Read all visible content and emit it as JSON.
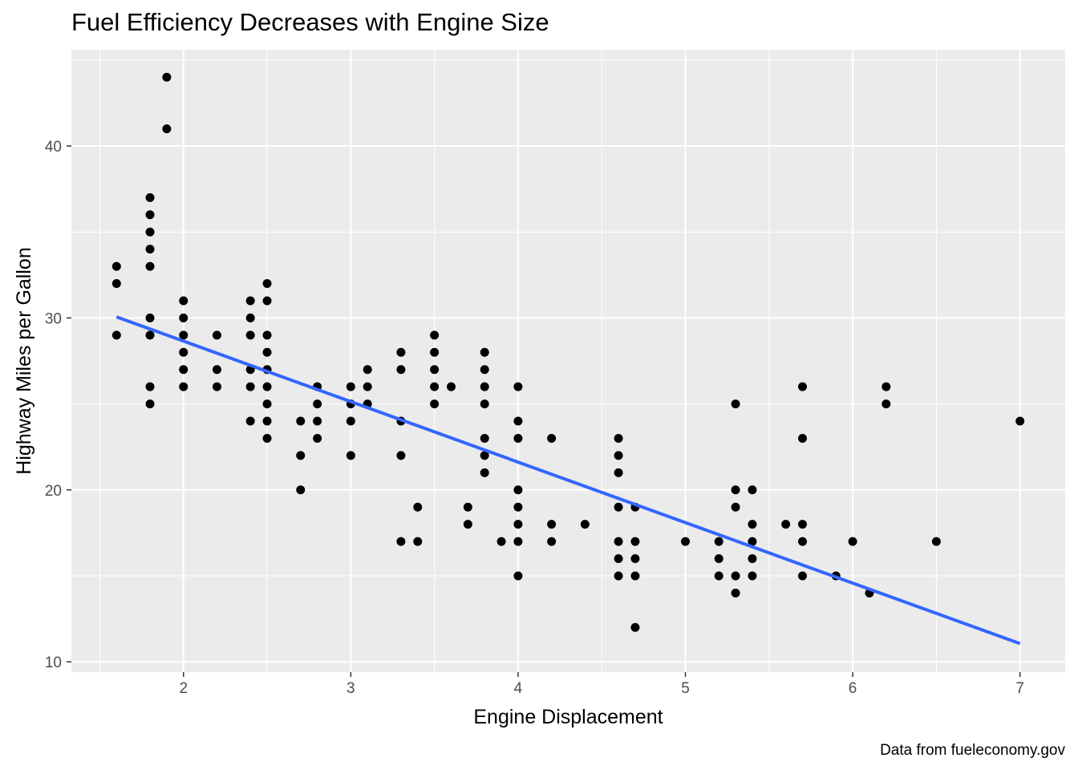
{
  "chart_data": {
    "type": "scatter",
    "title": "Fuel Efficiency Decreases with Engine Size",
    "xlabel": "Engine Displacement",
    "ylabel": "Highway Miles per Gallon",
    "caption": "Data from fueleconomy.gov",
    "xlim": [
      1.33,
      7.27
    ],
    "ylim": [
      9.4,
      45.6
    ],
    "xticks": [
      2,
      3,
      4,
      5,
      6,
      7
    ],
    "yticks": [
      10,
      20,
      30,
      40
    ],
    "grid": true,
    "point_color": "#000000",
    "points": [
      [
        1.6,
        33
      ],
      [
        1.6,
        32
      ],
      [
        1.6,
        29
      ],
      [
        1.8,
        37
      ],
      [
        1.8,
        36
      ],
      [
        1.8,
        35
      ],
      [
        1.8,
        34
      ],
      [
        1.8,
        33
      ],
      [
        1.8,
        30
      ],
      [
        1.8,
        29
      ],
      [
        1.8,
        26
      ],
      [
        1.8,
        25
      ],
      [
        1.9,
        44
      ],
      [
        1.9,
        41
      ],
      [
        2.0,
        31
      ],
      [
        2.0,
        30
      ],
      [
        2.0,
        29
      ],
      [
        2.0,
        28
      ],
      [
        2.0,
        27
      ],
      [
        2.0,
        26
      ],
      [
        2.2,
        29
      ],
      [
        2.2,
        27
      ],
      [
        2.2,
        26
      ],
      [
        2.4,
        31
      ],
      [
        2.4,
        30
      ],
      [
        2.4,
        29
      ],
      [
        2.4,
        27
      ],
      [
        2.4,
        26
      ],
      [
        2.4,
        24
      ],
      [
        2.5,
        32
      ],
      [
        2.5,
        31
      ],
      [
        2.5,
        29
      ],
      [
        2.5,
        28
      ],
      [
        2.5,
        27
      ],
      [
        2.5,
        26
      ],
      [
        2.5,
        25
      ],
      [
        2.5,
        24
      ],
      [
        2.5,
        23
      ],
      [
        2.7,
        24
      ],
      [
        2.7,
        22
      ],
      [
        2.7,
        20
      ],
      [
        2.8,
        26
      ],
      [
        2.8,
        25
      ],
      [
        2.8,
        24
      ],
      [
        2.8,
        23
      ],
      [
        3.0,
        26
      ],
      [
        3.0,
        25
      ],
      [
        3.0,
        24
      ],
      [
        3.0,
        22
      ],
      [
        3.1,
        27
      ],
      [
        3.1,
        26
      ],
      [
        3.1,
        25
      ],
      [
        3.3,
        28
      ],
      [
        3.3,
        27
      ],
      [
        3.3,
        24
      ],
      [
        3.3,
        22
      ],
      [
        3.3,
        17
      ],
      [
        3.4,
        19
      ],
      [
        3.4,
        17
      ],
      [
        3.5,
        29
      ],
      [
        3.5,
        28
      ],
      [
        3.5,
        27
      ],
      [
        3.5,
        26
      ],
      [
        3.5,
        25
      ],
      [
        3.6,
        26
      ],
      [
        3.7,
        19
      ],
      [
        3.7,
        18
      ],
      [
        3.8,
        28
      ],
      [
        3.8,
        27
      ],
      [
        3.8,
        26
      ],
      [
        3.8,
        25
      ],
      [
        3.8,
        23
      ],
      [
        3.8,
        22
      ],
      [
        3.8,
        21
      ],
      [
        3.9,
        17
      ],
      [
        4.0,
        26
      ],
      [
        4.0,
        24
      ],
      [
        4.0,
        23
      ],
      [
        4.0,
        20
      ],
      [
        4.0,
        19
      ],
      [
        4.0,
        18
      ],
      [
        4.0,
        17
      ],
      [
        4.0,
        15
      ],
      [
        4.2,
        23
      ],
      [
        4.2,
        18
      ],
      [
        4.2,
        17
      ],
      [
        4.4,
        18
      ],
      [
        4.6,
        23
      ],
      [
        4.6,
        22
      ],
      [
        4.6,
        21
      ],
      [
        4.6,
        19
      ],
      [
        4.6,
        17
      ],
      [
        4.6,
        16
      ],
      [
        4.6,
        15
      ],
      [
        4.7,
        19
      ],
      [
        4.7,
        17
      ],
      [
        4.7,
        16
      ],
      [
        4.7,
        15
      ],
      [
        4.7,
        12
      ],
      [
        5.0,
        17
      ],
      [
        5.2,
        17
      ],
      [
        5.2,
        16
      ],
      [
        5.2,
        15
      ],
      [
        5.3,
        25
      ],
      [
        5.3,
        20
      ],
      [
        5.3,
        19
      ],
      [
        5.3,
        15
      ],
      [
        5.3,
        14
      ],
      [
        5.4,
        20
      ],
      [
        5.4,
        18
      ],
      [
        5.4,
        17
      ],
      [
        5.4,
        16
      ],
      [
        5.4,
        15
      ],
      [
        5.6,
        18
      ],
      [
        5.7,
        26
      ],
      [
        5.7,
        23
      ],
      [
        5.7,
        18
      ],
      [
        5.7,
        17
      ],
      [
        5.7,
        15
      ],
      [
        5.9,
        15
      ],
      [
        6.0,
        17
      ],
      [
        6.1,
        14
      ],
      [
        6.2,
        26
      ],
      [
        6.2,
        25
      ],
      [
        6.5,
        17
      ],
      [
        7.0,
        24
      ]
    ],
    "trend_line": {
      "type": "linear",
      "color": "#3366FF",
      "x": [
        1.6,
        7.0
      ],
      "y": [
        30.06,
        11.06
      ]
    }
  }
}
